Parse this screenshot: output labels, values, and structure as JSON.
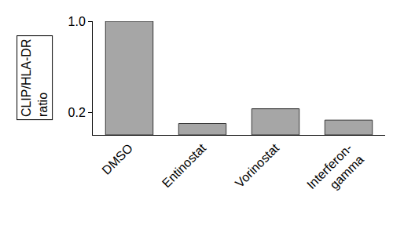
{
  "chart_data": {
    "type": "bar",
    "y_label": "CLIP/HLA-DR ratio",
    "categories": [
      "DMSO",
      "Entinostat",
      "Vorinostat",
      "Interferon-gamma"
    ],
    "values": [
      1.0,
      0.1,
      0.23,
      0.13
    ],
    "color": "#a6a6a6",
    "ylim": [
      0,
      1
    ],
    "yticks": [
      {
        "value": 1,
        "label": "1.0"
      },
      0.2
    ],
    "grid": false
  }
}
